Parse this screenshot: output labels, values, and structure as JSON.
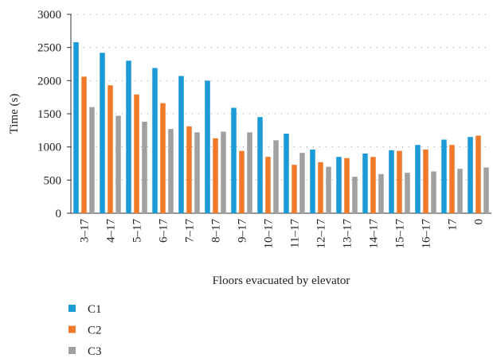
{
  "chart_data": {
    "type": "bar",
    "x_label": "Floors evacuated by elevator",
    "y_label": "Time (s)",
    "categories": [
      "3–17",
      "4–17",
      "5–17",
      "6–17",
      "7–17",
      "8–17",
      "9–17",
      "10–17",
      "11–17",
      "12–17",
      "13–17",
      "14–17",
      "15–17",
      "16–17",
      "17",
      "0"
    ],
    "series": [
      {
        "name": "C1",
        "color": "#1a9bd7",
        "values": [
          2580,
          2420,
          2300,
          2190,
          2070,
          2000,
          1590,
          1450,
          1200,
          960,
          850,
          900,
          950,
          1030,
          1110,
          1150
        ]
      },
      {
        "name": "C2",
        "color": "#f07a2a",
        "values": [
          2060,
          1930,
          1790,
          1660,
          1310,
          1130,
          940,
          850,
          730,
          770,
          830,
          850,
          940,
          960,
          1030,
          1170
        ]
      },
      {
        "name": "C3",
        "color": "#a0a0a0",
        "values": [
          1600,
          1470,
          1380,
          1270,
          1220,
          1230,
          1220,
          1100,
          910,
          700,
          550,
          590,
          610,
          630,
          670,
          690
        ]
      }
    ],
    "ylim": [
      0,
      3000
    ],
    "yticks": [
      0,
      500,
      1000,
      1500,
      2000,
      2500,
      3000
    ],
    "grid": true
  }
}
